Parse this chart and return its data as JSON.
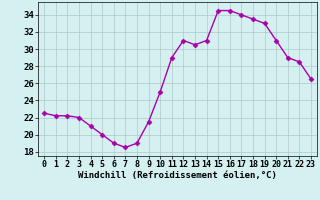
{
  "x": [
    0,
    1,
    2,
    3,
    4,
    5,
    6,
    7,
    8,
    9,
    10,
    11,
    12,
    13,
    14,
    15,
    16,
    17,
    18,
    19,
    20,
    21,
    22,
    23
  ],
  "y": [
    22.5,
    22.2,
    22.2,
    22.0,
    21.0,
    20.0,
    19.0,
    18.5,
    19.0,
    21.5,
    25.0,
    29.0,
    31.0,
    30.5,
    31.0,
    34.5,
    34.5,
    34.0,
    33.5,
    33.0,
    31.0,
    29.0,
    28.5,
    26.5
  ],
  "line_color": "#aa00aa",
  "marker": "D",
  "marker_size": 2.5,
  "background_color": "#d4f0f0",
  "grid_color": "#b0c8c8",
  "xlabel": "Windchill (Refroidissement éolien,°C)",
  "ylabel": "",
  "ylim": [
    17.5,
    35.5
  ],
  "yticks": [
    18,
    20,
    22,
    24,
    26,
    28,
    30,
    32,
    34
  ],
  "xlim": [
    -0.5,
    23.5
  ],
  "xticks": [
    0,
    1,
    2,
    3,
    4,
    5,
    6,
    7,
    8,
    9,
    10,
    11,
    12,
    13,
    14,
    15,
    16,
    17,
    18,
    19,
    20,
    21,
    22,
    23
  ],
  "xlabel_fontsize": 6.5,
  "tick_fontsize": 6.5,
  "line_width": 1.0
}
